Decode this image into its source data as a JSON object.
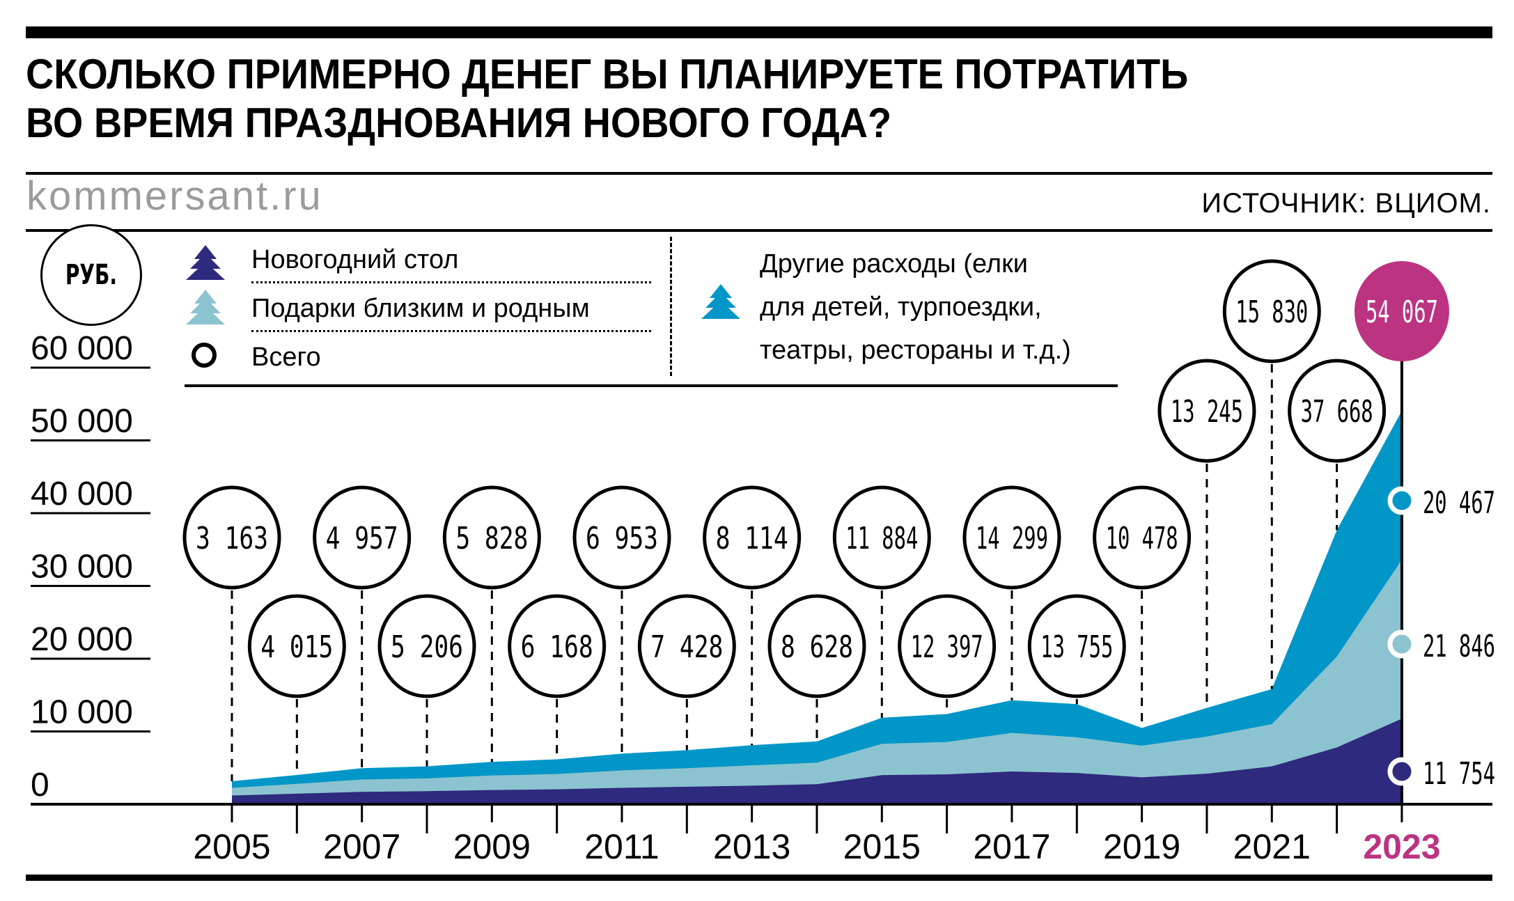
{
  "header": {
    "title_line1": "СКОЛЬКО ПРИМЕРНО ДЕНЕГ ВЫ ПЛАНИРУЕТЕ ПОТРАТИТЬ",
    "title_line2": "ВО ВРЕМЯ ПРАЗДНОВАНИЯ НОВОГО ГОДА?",
    "site": "kommersant.ru",
    "source": "ИСТОЧНИК: ВЦИОМ."
  },
  "unit_badge": "РУБ.",
  "legend": {
    "items": [
      {
        "label": "Новогодний стол",
        "icon": "tree-icon",
        "color": "#2e2a7d"
      },
      {
        "label": "Подарки близким и родным",
        "icon": "tree-icon",
        "color": "#8cc3d0"
      },
      {
        "label": "Всего",
        "icon": "circle-outline-icon",
        "color": "#000000"
      }
    ],
    "other": {
      "line1": "Другие расходы (елки",
      "line2": "для детей, турпоездки,",
      "line3": "театры, рестораны и т.д.)",
      "icon": "tree-icon",
      "color": "#0096c7"
    }
  },
  "colors": {
    "table": "#2e2a7d",
    "gifts": "#8cc3d0",
    "other": "#0096c7",
    "highlight": "#bb3381",
    "grid": "#000000",
    "site_gray": "#9b9b9b"
  },
  "chart_data": {
    "type": "area",
    "stacked": true,
    "title": "Сколько примерно денег вы планируете потратить во время празднования Нового года?",
    "ylabel": "руб.",
    "xlabel": "",
    "ylim": [
      0,
      60000
    ],
    "yticks": [
      "0",
      "10 000",
      "20 000",
      "30 000",
      "40 000",
      "50 000",
      "60 000"
    ],
    "ytick_values": [
      0,
      10000,
      20000,
      30000,
      40000,
      50000,
      60000
    ],
    "x": [
      2005,
      2006,
      2007,
      2008,
      2009,
      2010,
      2011,
      2012,
      2013,
      2014,
      2015,
      2016,
      2017,
      2018,
      2019,
      2020,
      2021,
      2022,
      2023
    ],
    "xtick_labels": [
      "2005",
      "2007",
      "2009",
      "2011",
      "2013",
      "2015",
      "2017",
      "2019",
      "2021",
      "2023"
    ],
    "highlight_year": "2023",
    "totals": [
      3163,
      4015,
      4957,
      5206,
      5828,
      6168,
      6953,
      7428,
      8114,
      8628,
      11884,
      12397,
      14299,
      13755,
      10478,
      13245,
      15830,
      37668,
      54067
    ],
    "total_labels": [
      "3 163",
      "4 015",
      "4 957",
      "5 206",
      "5 828",
      "6 168",
      "6 953",
      "7 428",
      "8 114",
      "8 628",
      "11 884",
      "12 397",
      "14 299",
      "13 755",
      "10 478",
      "13 245",
      "15 830",
      "37 668",
      "54 067"
    ],
    "series": [
      {
        "name": "Новогодний стол",
        "color": "#2e2a7d",
        "values": [
          1200,
          1450,
          1700,
          1800,
          1950,
          2050,
          2250,
          2400,
          2550,
          2750,
          4000,
          4100,
          4500,
          4300,
          3700,
          4200,
          5200,
          7800,
          11754
        ]
      },
      {
        "name": "Подарки близким и родным",
        "color": "#8cc3d0",
        "values": [
          1050,
          1350,
          1700,
          1750,
          2000,
          2100,
          2400,
          2550,
          2800,
          2950,
          4300,
          4450,
          5300,
          4900,
          4350,
          5100,
          5800,
          12500,
          21846
        ]
      },
      {
        "name": "Другие расходы (елки для детей, турпоездки, театры, рестораны и т.д.)",
        "color": "#0096c7",
        "values": [
          913,
          1215,
          1557,
          1656,
          1878,
          2018,
          2303,
          2478,
          2764,
          2928,
          3584,
          3847,
          4499,
          4555,
          2428,
          3945,
          4830,
          17368,
          20467
        ]
      }
    ],
    "end_labels": {
      "table": "11 754",
      "gifts": "21 846",
      "other": "20 467",
      "total": "54 067"
    },
    "grid": false,
    "legend_position": "top"
  }
}
